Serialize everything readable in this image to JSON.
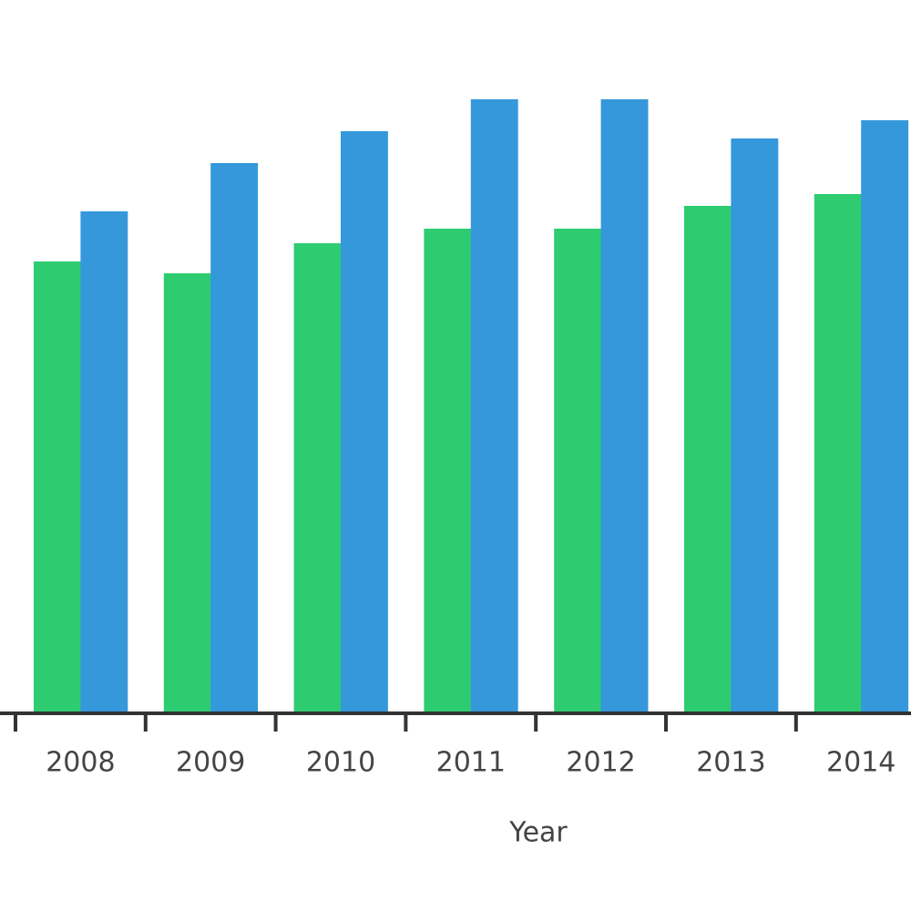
{
  "chart_data": {
    "type": "bar",
    "x_label": "Year",
    "categories": [
      "2008",
      "2009",
      "2010",
      "2011",
      "2012",
      "2013",
      "2014"
    ],
    "series": [
      {
        "color": "#2ecc71",
        "values": [
          495,
          482,
          515,
          531,
          531,
          556,
          569
        ]
      },
      {
        "color": "#3498db",
        "values": [
          550,
          603,
          638,
          673,
          673,
          630,
          650
        ]
      }
    ],
    "ylim": [
      0,
      782
    ]
  }
}
